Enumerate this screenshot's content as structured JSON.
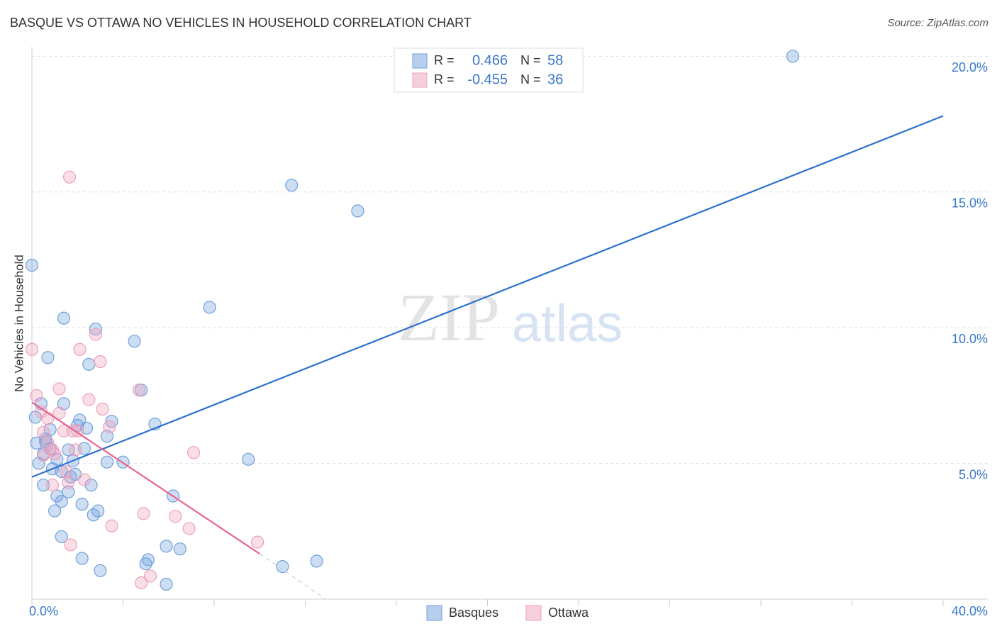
{
  "chart_data": {
    "type": "scatter",
    "title": "BASQUE VS OTTAWA NO VEHICLES IN HOUSEHOLD CORRELATION CHART",
    "source": "Source: ZipAtlas.com",
    "watermark": [
      "ZIP",
      "atlas"
    ],
    "y_label": "No Vehicles in Household",
    "xlim": [
      0,
      40
    ],
    "ylim": [
      0,
      20.4
    ],
    "xticks": [
      {
        "value": 0,
        "label": "0.0%"
      },
      {
        "value": 4,
        "label": null
      },
      {
        "value": 8,
        "label": null
      },
      {
        "value": 12,
        "label": null
      },
      {
        "value": 16,
        "label": null
      },
      {
        "value": 20,
        "label": null
      },
      {
        "value": 24,
        "label": null
      },
      {
        "value": 28,
        "label": null
      },
      {
        "value": 32,
        "label": null
      },
      {
        "value": 36,
        "label": null
      },
      {
        "value": 40,
        "label": "40.0%"
      }
    ],
    "yticks": [
      {
        "value": 5,
        "label": "5.0%"
      },
      {
        "value": 10,
        "label": "10.0%"
      },
      {
        "value": 15,
        "label": "15.0%"
      },
      {
        "value": 20,
        "label": "20.0%"
      }
    ],
    "grid": true,
    "stat_labels": {
      "r": "R =",
      "n": "N ="
    },
    "series": [
      {
        "name": "Basques",
        "color": "#6fa0dc",
        "line_color": "#2c71cf",
        "r": 0.466,
        "n": 58,
        "trend": {
          "x": [
            0,
            40
          ],
          "y": [
            4.5,
            17.8
          ]
        },
        "x": [
          33.4,
          11.4,
          14.3,
          0,
          7.8,
          1.4,
          2.8,
          4.5,
          0.7,
          2.5,
          4.8,
          0.4,
          1.4,
          0.15,
          2.1,
          2.0,
          3.5,
          5.4,
          0.8,
          3.3,
          0.2,
          0.6,
          0.8,
          1.6,
          2.3,
          0.5,
          1.1,
          1.8,
          3.3,
          4.0,
          9.5,
          0.3,
          0.9,
          1.3,
          1.7,
          0.5,
          2.6,
          1.6,
          6.2,
          1.1,
          1.3,
          2.2,
          1.0,
          2.9,
          2.7,
          1.3,
          5.9,
          6.5,
          2.2,
          5.1,
          5.0,
          12.5,
          11.0,
          3.0,
          5.9,
          0.6,
          1.9,
          2.4
        ],
        "values": [
          20.0,
          15.25,
          14.3,
          12.3,
          10.75,
          10.35,
          9.95,
          9.5,
          8.9,
          8.65,
          7.7,
          7.2,
          7.2,
          6.7,
          6.6,
          6.4,
          6.55,
          6.45,
          6.25,
          6.0,
          5.75,
          5.8,
          5.55,
          5.5,
          5.55,
          5.35,
          5.15,
          5.1,
          5.05,
          5.05,
          5.15,
          5.0,
          4.8,
          4.7,
          4.5,
          4.2,
          4.2,
          3.95,
          3.8,
          3.8,
          3.6,
          3.5,
          3.25,
          3.25,
          3.1,
          2.3,
          1.95,
          1.85,
          1.5,
          1.45,
          1.3,
          1.4,
          1.2,
          1.05,
          0.55,
          5.9,
          4.6,
          6.3
        ]
      },
      {
        "name": "Ottawa",
        "color": "#eea0bb",
        "line_color": "#e8648f",
        "r": -0.455,
        "n": 36,
        "trend": {
          "x": [
            0,
            10,
            12.9
          ],
          "y": [
            7.25,
            1.67,
            0
          ]
        },
        "x": [
          1.65,
          0,
          2.8,
          2.1,
          3.0,
          1.2,
          4.7,
          0.2,
          2.5,
          3.1,
          0.4,
          1.2,
          0.7,
          3.4,
          1.4,
          2.0,
          0.5,
          1.8,
          0.7,
          0.9,
          1.0,
          7.1,
          0.5,
          1.5,
          2.3,
          1.6,
          0.9,
          4.9,
          6.3,
          3.5,
          6.9,
          9.9,
          1.7,
          5.2,
          4.8,
          1.9
        ],
        "values": [
          15.55,
          9.2,
          9.75,
          9.2,
          8.75,
          7.75,
          7.7,
          7.5,
          7.35,
          7.0,
          6.9,
          6.85,
          6.65,
          6.35,
          6.2,
          6.2,
          6.15,
          6.2,
          5.75,
          5.5,
          5.35,
          5.4,
          5.3,
          4.7,
          4.4,
          4.3,
          4.2,
          3.15,
          3.05,
          2.7,
          2.6,
          2.1,
          2.0,
          0.85,
          0.6,
          5.5
        ]
      }
    ]
  }
}
